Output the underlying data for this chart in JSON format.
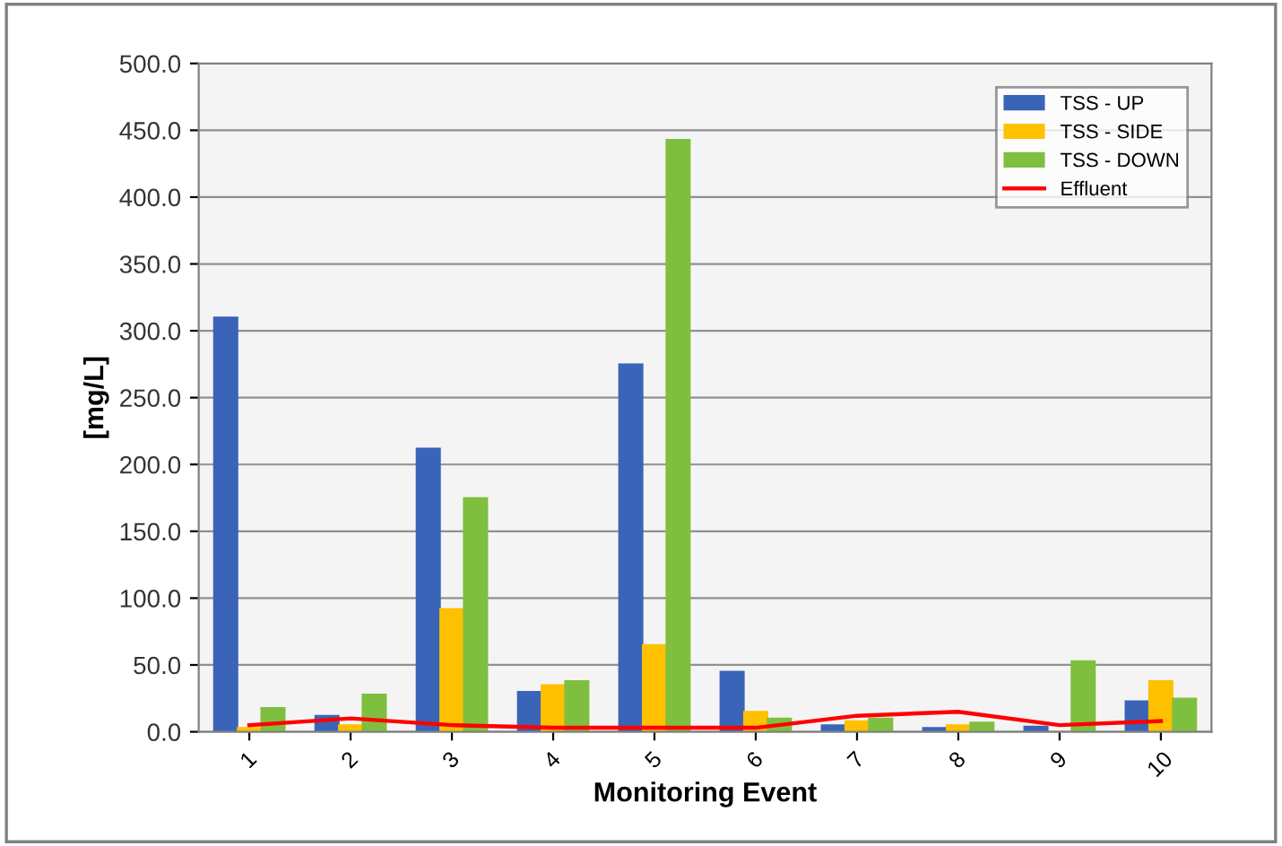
{
  "chart_data": {
    "type": "bar",
    "xlabel": "Monitoring Event",
    "ylabel": "[mg/L]",
    "categories": [
      "1",
      "2",
      "3",
      "4",
      "5",
      "6",
      "7",
      "8",
      "9",
      "10"
    ],
    "series": [
      {
        "name": "TSS - UP",
        "color": "#3a64b8",
        "values": [
          310,
          12,
          212,
          30,
          275,
          45,
          5,
          3,
          4,
          23
        ]
      },
      {
        "name": "TSS - SIDE",
        "color": "#ffc000",
        "values": [
          3,
          5,
          92,
          35,
          65,
          15,
          8,
          5,
          null,
          38
        ]
      },
      {
        "name": "TSS - DOWN",
        "color": "#7fbf3f",
        "values": [
          18,
          28,
          175,
          38,
          443,
          10,
          10,
          7,
          53,
          25
        ]
      },
      {
        "name": "Effluent",
        "type": "line",
        "color": "#ff0000",
        "values": [
          5,
          10,
          5,
          3,
          3,
          3,
          12,
          15,
          5,
          8
        ]
      }
    ],
    "ylim": [
      0,
      500
    ],
    "yticks": [
      {
        "value": 0,
        "label": "0.0"
      },
      {
        "value": 50,
        "label": "50.0"
      },
      {
        "value": 100,
        "label": "100.0"
      },
      {
        "value": 150,
        "label": "150.0"
      },
      {
        "value": 200,
        "label": "200.0"
      },
      {
        "value": 250,
        "label": "250.0"
      },
      {
        "value": 300,
        "label": "300.0"
      },
      {
        "value": 350,
        "label": "350.0"
      },
      {
        "value": 400,
        "label": "400.0"
      },
      {
        "value": 450,
        "label": "450.0"
      },
      {
        "value": 500,
        "label": "500.0"
      }
    ],
    "grid": "y",
    "legend": "top right",
    "line_style": "solid",
    "marker": "none"
  }
}
